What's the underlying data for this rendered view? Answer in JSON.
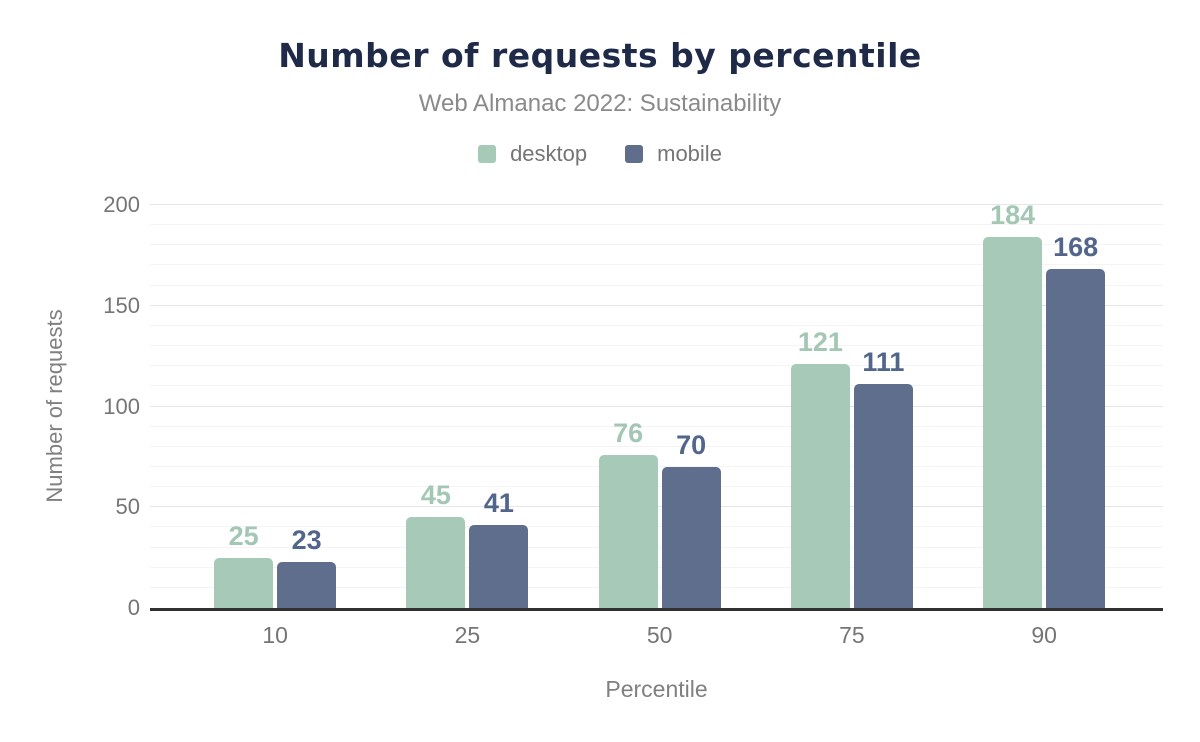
{
  "chart_data": {
    "type": "bar",
    "title": "Number of requests by percentile",
    "subtitle": "Web Almanac 2022: Sustainability",
    "xlabel": "Percentile",
    "ylabel": "Number of requests",
    "categories": [
      "10",
      "25",
      "50",
      "75",
      "90"
    ],
    "series": [
      {
        "name": "desktop",
        "color": "#a7c9b8",
        "label_color": "#a3c7b4",
        "values": [
          25,
          45,
          76,
          121,
          184
        ]
      },
      {
        "name": "mobile",
        "color": "#5f6e8c",
        "label_color": "#52658b",
        "values": [
          23,
          41,
          70,
          111,
          168
        ]
      }
    ],
    "ylim": [
      0,
      200
    ],
    "yticks": [
      0,
      50,
      100,
      150,
      200
    ],
    "minor_grid_step": 10,
    "grid": true,
    "legend_position": "top",
    "colors": {
      "title": "#1e2a47",
      "subtitle": "#8a8a8a",
      "axis_line": "#303030",
      "tick_label": "#757575",
      "major_grid": "#e7e7e7",
      "minor_grid": "#f4f4f4",
      "background": "#ffffff"
    }
  }
}
